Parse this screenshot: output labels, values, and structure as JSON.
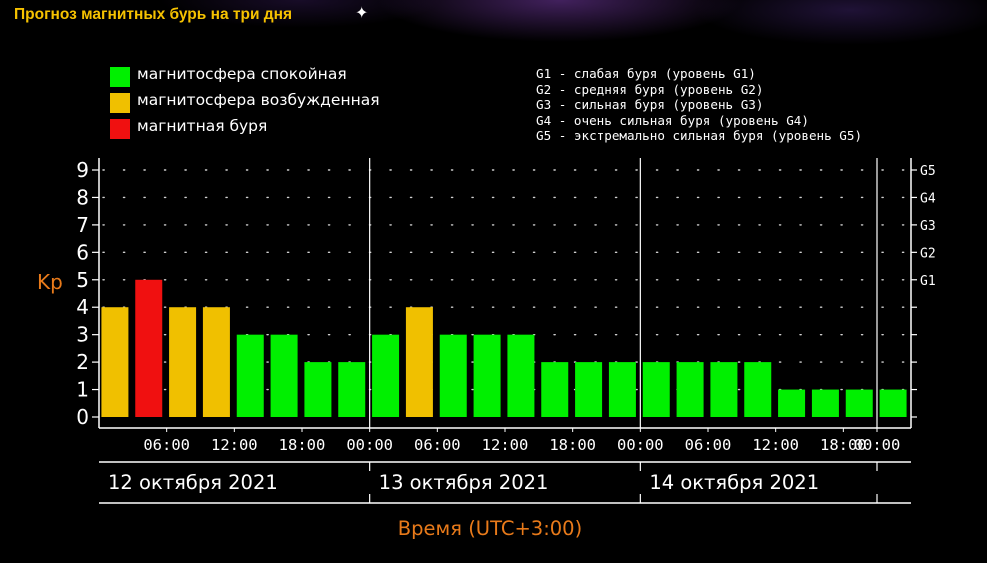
{
  "title": "Прогноз магнитных бурь на три дня",
  "legend": [
    {
      "label": "магнитосфера спокойная",
      "color": "#00f000"
    },
    {
      "label": "магнитосфера возбужденная",
      "color": "#f0c000"
    },
    {
      "label": "магнитная буря",
      "color": "#f01010"
    }
  ],
  "storm_levels": [
    "G1 - слабая буря (уровень G1)",
    "G2 - средняя буря (уровень G2)",
    "G3 - сильная буря (уровень G3)",
    "G4 - очень сильная буря (уровень G4)",
    "G5 - экстремально сильная буря (уровень G5)"
  ],
  "chart_data": {
    "type": "bar",
    "ylabel": "Kp",
    "xlabel": "Время (UTC+3:00)",
    "ylim": [
      0,
      9
    ],
    "yticks": [
      "0",
      "1",
      "2",
      "3",
      "4",
      "5",
      "6",
      "7",
      "8",
      "9"
    ],
    "g_ticks": [
      {
        "kp": 5,
        "label": "G1"
      },
      {
        "kp": 6,
        "label": "G2"
      },
      {
        "kp": 7,
        "label": "G3"
      },
      {
        "kp": 8,
        "label": "G4"
      },
      {
        "kp": 9,
        "label": "G5"
      }
    ],
    "time_ticks": [
      "06:00",
      "12:00",
      "18:00",
      "00:00",
      "06:00",
      "12:00",
      "18:00",
      "00:00",
      "06:00",
      "12:00",
      "18:00",
      "00:00"
    ],
    "days": [
      "12 октября 2021",
      "13 октября 2021",
      "14 октября 2021"
    ],
    "values": [
      4,
      5,
      4,
      4,
      3,
      3,
      2,
      2,
      3,
      4,
      3,
      3,
      3,
      2,
      2,
      2,
      2,
      2,
      2,
      2,
      1,
      1,
      1,
      1
    ],
    "grid": true
  }
}
